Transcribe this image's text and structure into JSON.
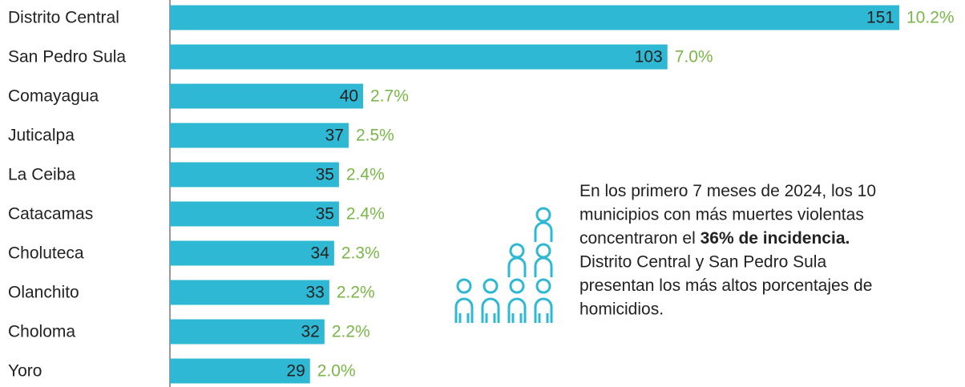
{
  "chart_data": {
    "type": "bar",
    "orientation": "horizontal",
    "categories": [
      "Distrito Central",
      "San Pedro Sula",
      "Comayagua",
      "Juticalpa",
      "La Ceiba",
      "Catacamas",
      "Choluteca",
      "Olanchito",
      "Choloma",
      "Yoro"
    ],
    "values": [
      151,
      103,
      40,
      37,
      35,
      35,
      34,
      33,
      32,
      29
    ],
    "color": "#2fb8d3",
    "shares": [
      10.2,
      7.0,
      2.7,
      2.5,
      2.4,
      2.4,
      2.3,
      2.2,
      2.2,
      2.0
    ],
    "share_labels": [
      "10.2%",
      "7.0%",
      "2.7%",
      "2.5%",
      "2.4%",
      "2.4%",
      "2.3%",
      "2.2%",
      "2.2%",
      "2.0%"
    ],
    "share_color": "#7ab648",
    "annotation": [
      [
        "En los primero 7 meses de 2024,  los 10"
      ],
      [
        "municipios con más muertes violentas"
      ],
      [
        "concentraron el ",
        "36% de incidencia."
      ],
      [
        "Distrito Central y San Pedro Sula"
      ],
      [
        "presentan  los más altos porcentajes de"
      ],
      [
        "homicidios."
      ]
    ]
  }
}
